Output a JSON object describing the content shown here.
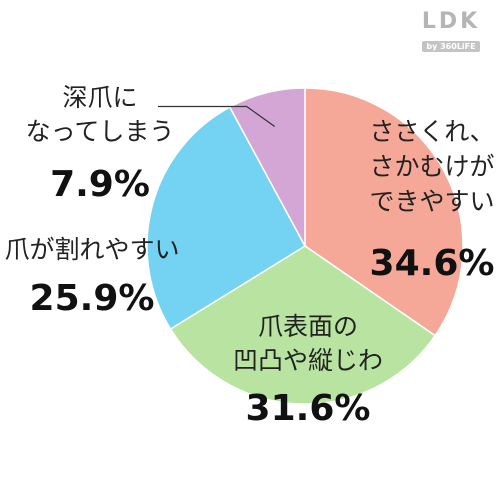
{
  "logo": {
    "main": "LDK",
    "sub": "by 360LiFE"
  },
  "chart_data": {
    "type": "pie",
    "start_angle_deg": 0,
    "direction": "clockwise",
    "slices": [
      {
        "label_lines": [
          "ささくれ、",
          "さかむけが",
          "できやすい"
        ],
        "value": 34.6,
        "value_label": "34.6%",
        "color": "#f5a898"
      },
      {
        "label_lines": [
          "爪表面の",
          "凹凸や縦じわ"
        ],
        "value": 31.6,
        "value_label": "31.6%",
        "color": "#b8e3a0"
      },
      {
        "label_lines": [
          "爪が割れやすい"
        ],
        "value": 25.9,
        "value_label": "25.9%",
        "color": "#74d3f2"
      },
      {
        "label_lines": [
          "深爪に",
          "なってしまう"
        ],
        "value": 7.9,
        "value_label": "7.9%",
        "color": "#d4a6d6"
      }
    ]
  }
}
